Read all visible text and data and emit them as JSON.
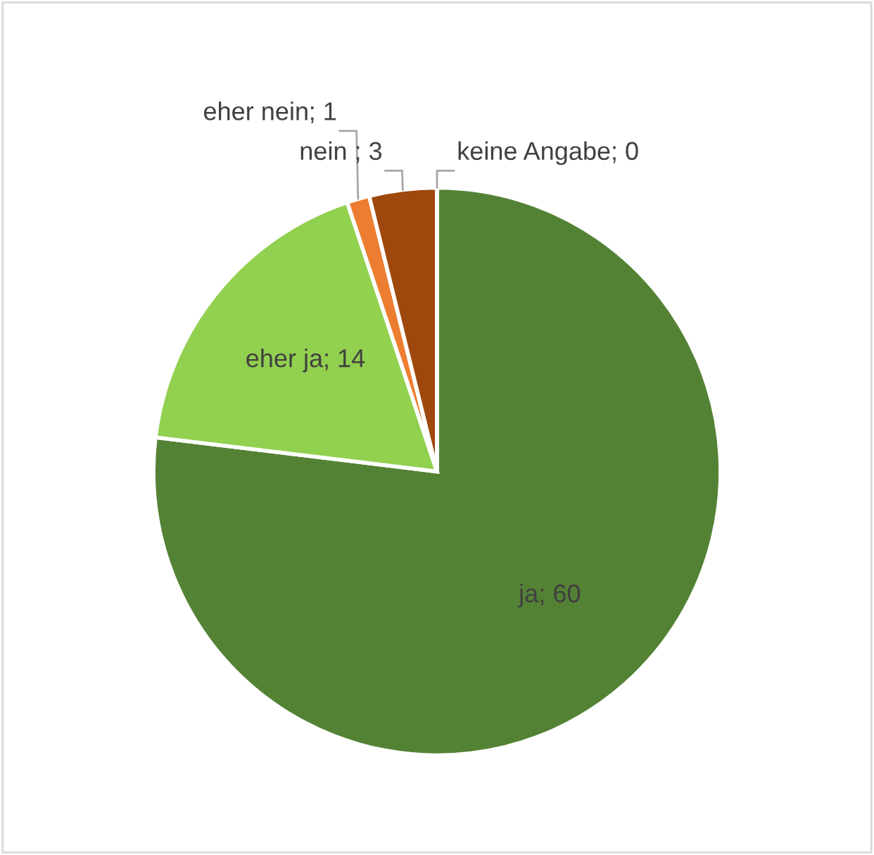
{
  "chart_data": {
    "type": "pie",
    "categories": [
      "ja",
      "eher ja",
      "eher nein",
      "nein ",
      "keine Angabe"
    ],
    "values": [
      60,
      14,
      1,
      3,
      0
    ],
    "colors": [
      "#548235",
      "#92d050",
      "#ed7d31",
      "#9e480e",
      "#70ad47"
    ],
    "value_labels": [
      "; 60",
      "; 14",
      "; 1",
      "; 3",
      "; 0"
    ]
  }
}
